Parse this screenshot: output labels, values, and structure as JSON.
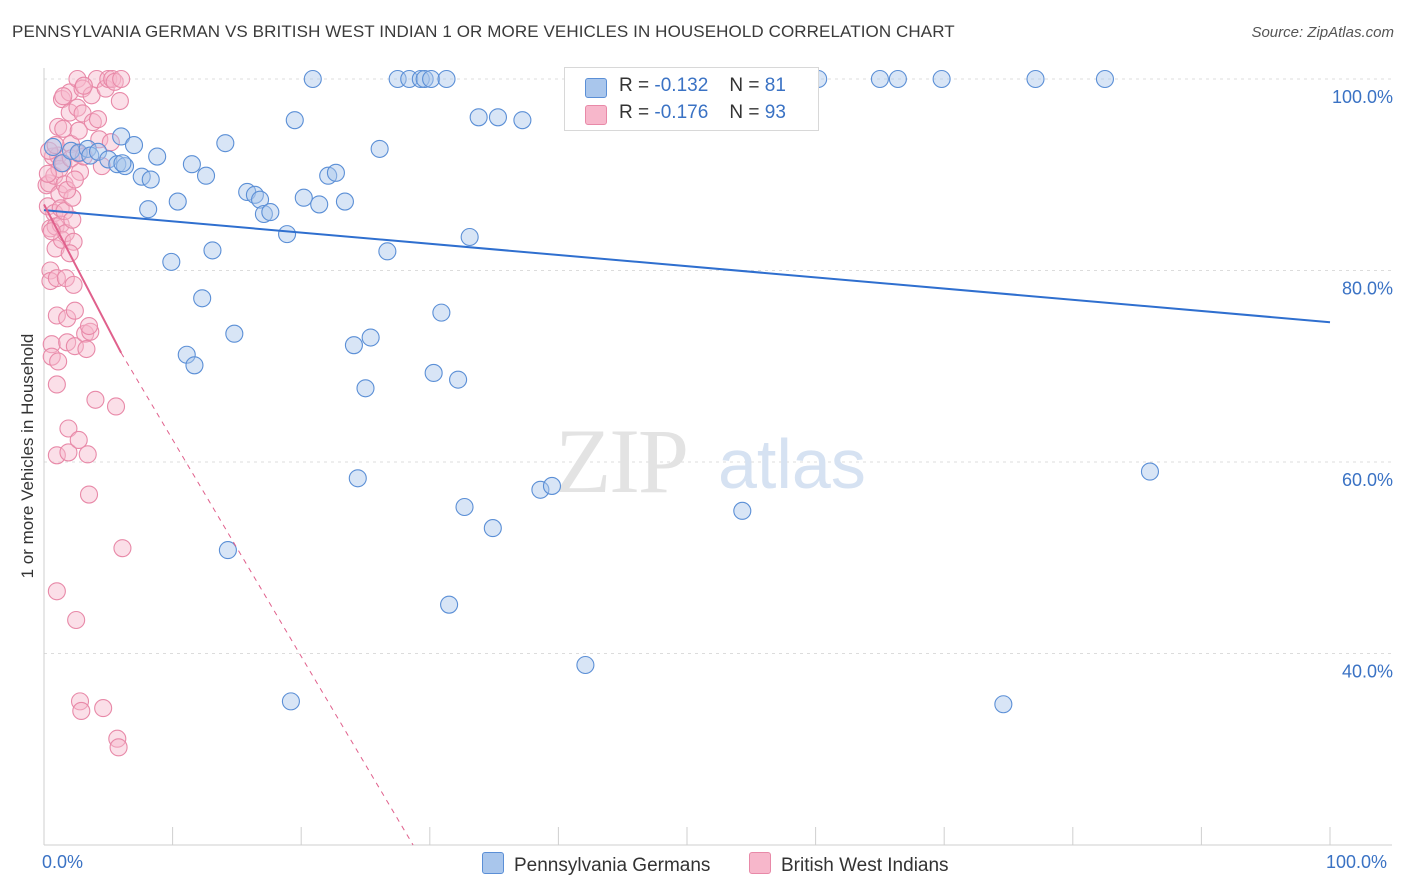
{
  "title": "PENNSYLVANIA GERMAN VS BRITISH WEST INDIAN 1 OR MORE VEHICLES IN HOUSEHOLD CORRELATION CHART",
  "source": "Source: ZipAtlas.com",
  "watermark": {
    "zip": "ZIP",
    "atlas": "atlas"
  },
  "legend": {
    "rows": [
      {
        "r_label": "R =",
        "r_value": "-0.132",
        "n_label": "N =",
        "n_value": "81"
      },
      {
        "r_label": "R =",
        "r_value": "-0.176",
        "n_label": "N =",
        "n_value": "93"
      }
    ]
  },
  "bottom_legend": {
    "series1": "Pennsylvania Germans",
    "series2": "British West Indians"
  },
  "colors": {
    "blue_fill": "#a9c6ec",
    "blue_stroke": "#5b8fd6",
    "blue_line": "#2f6fcf",
    "pink_fill": "#f7b7cb",
    "pink_stroke": "#e889a8",
    "pink_line": "#e0608c",
    "grid": "#dcdcdc",
    "axis_text": "#3a72c4"
  },
  "chart_data": {
    "type": "scatter",
    "title": "PENNSYLVANIA GERMAN VS BRITISH WEST INDIAN 1 OR MORE VEHICLES IN HOUSEHOLD CORRELATION CHART",
    "xlabel": "",
    "ylabel": "1 or more Vehicles in Household",
    "xlim": [
      0,
      100
    ],
    "ylim": [
      20,
      100
    ],
    "x_tick_labels": [
      "0.0%",
      "100.0%"
    ],
    "y_tick_labels": [
      "100.0%",
      "80.0%",
      "60.0%",
      "40.0%"
    ],
    "y_ticks": [
      100,
      80,
      60,
      40
    ],
    "grid": true,
    "series": [
      {
        "name": "Pennsylvania Germans",
        "color": "#5b8fd6",
        "r": -0.132,
        "n": 81,
        "trend": {
          "x": [
            0,
            100
          ],
          "y": [
            86.3,
            74.6
          ]
        },
        "points": [
          [
            0.7,
            92.9
          ],
          [
            1.4,
            91.2
          ],
          [
            2.1,
            92.5
          ],
          [
            2.7,
            92.3
          ],
          [
            3.4,
            92.7
          ],
          [
            3.6,
            92.0
          ],
          [
            4.2,
            92.4
          ],
          [
            5.0,
            91.6
          ],
          [
            5.7,
            91.1
          ],
          [
            6.0,
            94.0
          ],
          [
            6.3,
            90.9
          ],
          [
            7.0,
            93.1
          ],
          [
            7.6,
            89.8
          ],
          [
            8.1,
            86.4
          ],
          [
            8.3,
            89.5
          ],
          [
            8.8,
            91.9
          ],
          [
            9.9,
            80.9
          ],
          [
            10.4,
            87.2
          ],
          [
            11.1,
            71.2
          ],
          [
            11.5,
            91.1
          ],
          [
            11.7,
            70.1
          ],
          [
            12.3,
            77.1
          ],
          [
            12.6,
            89.9
          ],
          [
            13.1,
            82.1
          ],
          [
            14.1,
            93.3
          ],
          [
            14.8,
            73.4
          ],
          [
            14.3,
            50.8
          ],
          [
            15.8,
            88.2
          ],
          [
            16.4,
            87.9
          ],
          [
            16.8,
            87.4
          ],
          [
            17.1,
            85.9
          ],
          [
            17.6,
            86.1
          ],
          [
            18.9,
            83.8
          ],
          [
            19.2,
            35.0
          ],
          [
            19.5,
            95.7
          ],
          [
            20.2,
            87.6
          ],
          [
            20.9,
            100.0
          ],
          [
            21.4,
            86.9
          ],
          [
            22.1,
            89.9
          ],
          [
            22.7,
            90.2
          ],
          [
            23.4,
            87.2
          ],
          [
            24.1,
            72.2
          ],
          [
            24.4,
            58.3
          ],
          [
            25.0,
            67.7
          ],
          [
            25.4,
            73.0
          ],
          [
            26.7,
            82.0
          ],
          [
            26.1,
            92.7
          ],
          [
            27.5,
            100.0
          ],
          [
            28.4,
            100.0
          ],
          [
            29.3,
            100.0
          ],
          [
            29.6,
            100.0
          ],
          [
            30.1,
            100.0
          ],
          [
            30.3,
            69.3
          ],
          [
            30.9,
            75.6
          ],
          [
            31.3,
            100.0
          ],
          [
            31.5,
            45.1
          ],
          [
            32.2,
            68.6
          ],
          [
            32.7,
            55.3
          ],
          [
            33.1,
            83.5
          ],
          [
            33.8,
            96.0
          ],
          [
            34.9,
            53.1
          ],
          [
            35.3,
            96.0
          ],
          [
            37.2,
            95.7
          ],
          [
            38.6,
            57.1
          ],
          [
            39.5,
            57.5
          ],
          [
            42.1,
            38.8
          ],
          [
            43.6,
            100.0
          ],
          [
            45.8,
            100.0
          ],
          [
            50.8,
            100.0
          ],
          [
            54.3,
            54.9
          ],
          [
            55.9,
            100.0
          ],
          [
            56.5,
            100.0
          ],
          [
            60.2,
            100.0
          ],
          [
            65.0,
            100.0
          ],
          [
            66.4,
            100.0
          ],
          [
            69.8,
            100.0
          ],
          [
            74.6,
            34.7
          ],
          [
            77.1,
            100.0
          ],
          [
            82.5,
            100.0
          ],
          [
            86.0,
            59.0
          ],
          [
            6.1,
            91.2
          ]
        ]
      },
      {
        "name": "British West Indians",
        "color": "#e889a8",
        "r": -0.176,
        "n": 93,
        "trend_solid": {
          "x": [
            0,
            6.0
          ],
          "y": [
            86.9,
            71.4
          ]
        },
        "trend_dashed": {
          "x": [
            6.0,
            28.7
          ],
          "y": [
            71.4,
            20.0
          ]
        },
        "points": [
          [
            0.2,
            88.9
          ],
          [
            0.3,
            86.7
          ],
          [
            0.4,
            89.1
          ],
          [
            0.5,
            84.4
          ],
          [
            0.5,
            80.0
          ],
          [
            0.5,
            78.9
          ],
          [
            0.6,
            72.3
          ],
          [
            0.6,
            71.0
          ],
          [
            0.7,
            91.9
          ],
          [
            0.8,
            89.9
          ],
          [
            0.8,
            86.0
          ],
          [
            0.9,
            84.6
          ],
          [
            0.9,
            82.3
          ],
          [
            1.0,
            79.2
          ],
          [
            1.0,
            75.3
          ],
          [
            1.0,
            68.1
          ],
          [
            1.0,
            60.7
          ],
          [
            1.0,
            46.5
          ],
          [
            1.1,
            95.0
          ],
          [
            1.1,
            92.0
          ],
          [
            1.2,
            90.6
          ],
          [
            1.2,
            88.0
          ],
          [
            1.3,
            86.5
          ],
          [
            1.3,
            84.8
          ],
          [
            1.4,
            83.2
          ],
          [
            1.4,
            97.9
          ],
          [
            1.5,
            94.8
          ],
          [
            1.5,
            91.2
          ],
          [
            1.6,
            89.0
          ],
          [
            1.6,
            86.2
          ],
          [
            1.7,
            83.9
          ],
          [
            1.7,
            79.2
          ],
          [
            1.8,
            75.0
          ],
          [
            1.8,
            72.5
          ],
          [
            1.9,
            63.5
          ],
          [
            1.9,
            61.0
          ],
          [
            2.0,
            98.6
          ],
          [
            2.0,
            96.5
          ],
          [
            2.1,
            93.2
          ],
          [
            2.1,
            91.7
          ],
          [
            2.2,
            87.6
          ],
          [
            2.2,
            85.3
          ],
          [
            2.3,
            83.0
          ],
          [
            2.3,
            78.5
          ],
          [
            2.4,
            75.8
          ],
          [
            2.4,
            72.1
          ],
          [
            2.5,
            43.5
          ],
          [
            2.6,
            100.0
          ],
          [
            2.6,
            97.0
          ],
          [
            2.7,
            94.6
          ],
          [
            2.7,
            92.2
          ],
          [
            2.8,
            90.3
          ],
          [
            2.8,
            35.0
          ],
          [
            2.9,
            34.0
          ],
          [
            3.0,
            99.0
          ],
          [
            3.0,
            96.4
          ],
          [
            3.1,
            91.9
          ],
          [
            3.2,
            73.4
          ],
          [
            3.3,
            71.8
          ],
          [
            3.4,
            60.8
          ],
          [
            3.5,
            56.6
          ],
          [
            3.6,
            73.6
          ],
          [
            3.7,
            98.3
          ],
          [
            3.8,
            95.5
          ],
          [
            4.0,
            66.5
          ],
          [
            4.1,
            100.0
          ],
          [
            4.3,
            93.7
          ],
          [
            4.5,
            90.9
          ],
          [
            4.6,
            34.3
          ],
          [
            4.8,
            99.0
          ],
          [
            5.0,
            100.0
          ],
          [
            5.2,
            93.4
          ],
          [
            5.3,
            100.0
          ],
          [
            5.5,
            99.7
          ],
          [
            5.6,
            65.8
          ],
          [
            5.7,
            31.1
          ],
          [
            5.8,
            30.2
          ],
          [
            5.9,
            97.7
          ],
          [
            6.0,
            100.0
          ],
          [
            6.1,
            51.0
          ],
          [
            0.4,
            92.5
          ],
          [
            0.6,
            84.1
          ],
          [
            1.1,
            70.5
          ],
          [
            1.5,
            98.2
          ],
          [
            2.0,
            81.8
          ],
          [
            2.7,
            62.3
          ],
          [
            3.1,
            99.3
          ],
          [
            4.2,
            95.8
          ],
          [
            0.3,
            90.1
          ],
          [
            1.8,
            88.4
          ],
          [
            2.4,
            89.5
          ],
          [
            3.5,
            74.2
          ],
          [
            0.9,
            93.1
          ]
        ]
      }
    ]
  }
}
